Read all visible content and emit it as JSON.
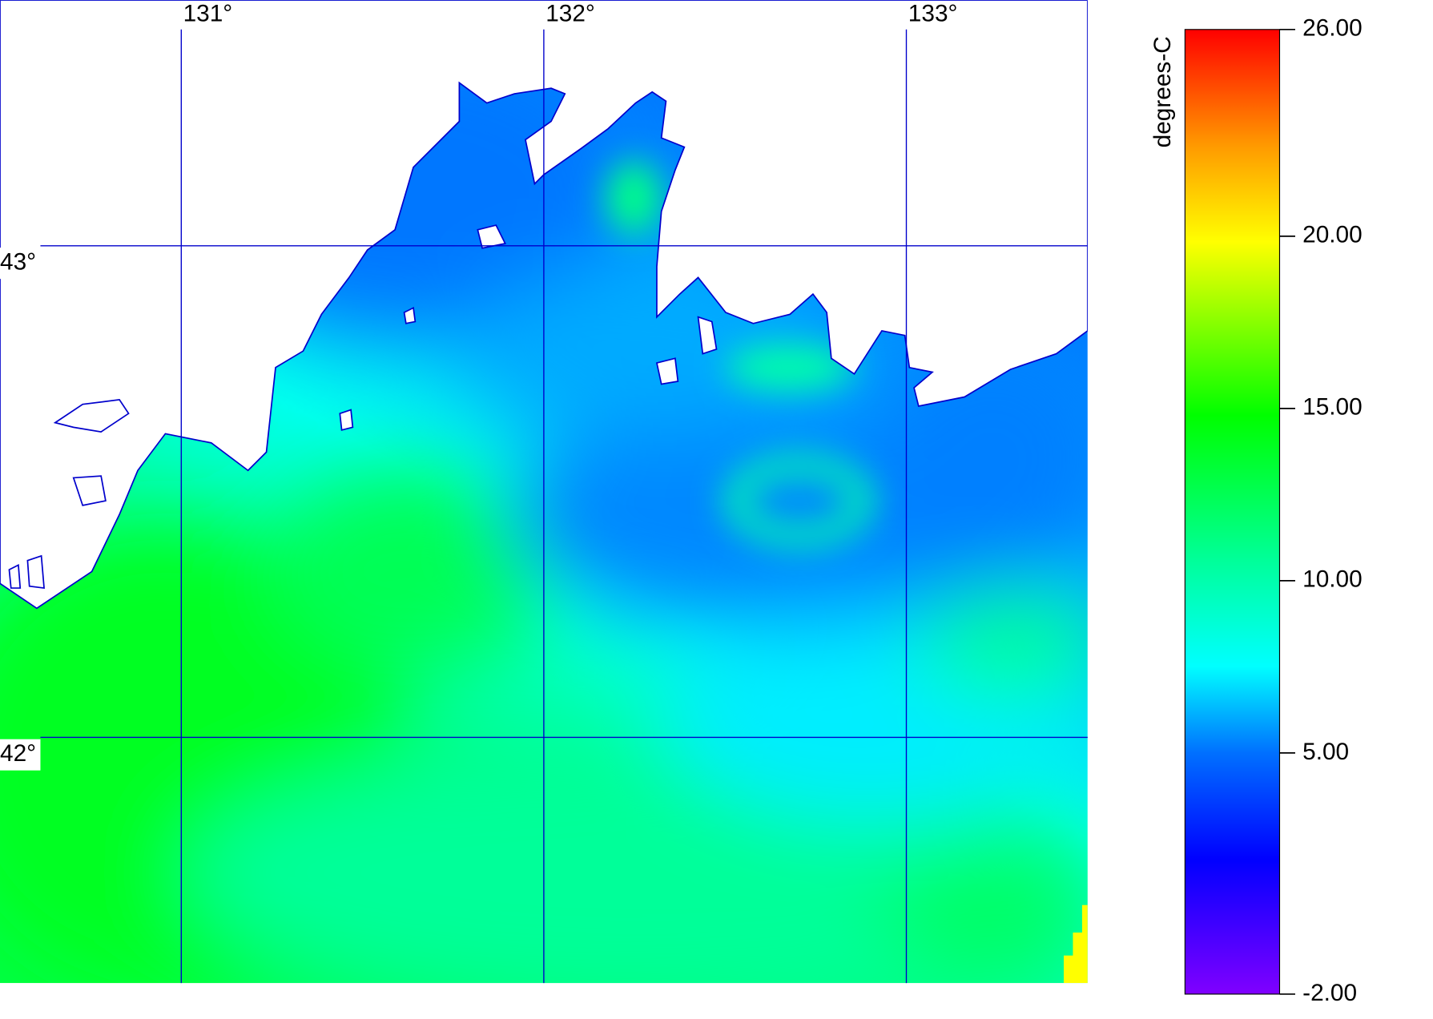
{
  "map": {
    "lon_range": [
      130.5,
      133.5
    ],
    "lat_range": [
      41.5,
      43.5
    ],
    "lon_lines": [
      {
        "value": 131,
        "label": "131°"
      },
      {
        "value": 132,
        "label": "132°"
      },
      {
        "value": 133,
        "label": "133°"
      }
    ],
    "lat_lines": [
      {
        "value": 43,
        "label": "43°"
      },
      {
        "value": 42,
        "label": "42°"
      }
    ]
  },
  "colorbar": {
    "title": "degrees-C",
    "lim": [
      -2,
      26
    ],
    "ticks": [
      {
        "value": 26,
        "label": "26.00"
      },
      {
        "value": 20,
        "label": "20.00"
      },
      {
        "value": 15,
        "label": "15.00"
      },
      {
        "value": 10,
        "label": "10.00"
      },
      {
        "value": 5,
        "label": "5.00"
      },
      {
        "value": -2,
        "label": "-2.00"
      }
    ]
  }
}
